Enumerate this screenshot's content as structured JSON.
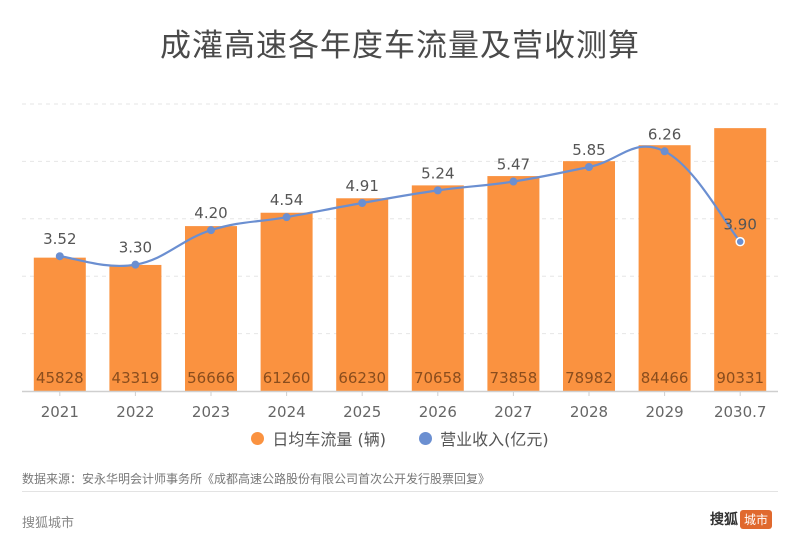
{
  "chart_data": {
    "type": "bar",
    "title": "成灌高速各年度车流量及营收测算",
    "categories": [
      "2021",
      "2022",
      "2023",
      "2024",
      "2025",
      "2026",
      "2027",
      "2028",
      "2029",
      "2030.7"
    ],
    "series": [
      {
        "name": "日均车流量 (辆)",
        "type": "bar",
        "color": "#fa9240",
        "values": [
          45828,
          43319,
          56666,
          61260,
          66230,
          70658,
          73858,
          78982,
          84466,
          90331
        ],
        "axis_range": [
          0,
          100000
        ]
      },
      {
        "name": "营业收入(亿元)",
        "type": "line",
        "color": "#6b8fd1",
        "values": [
          3.52,
          3.3,
          4.2,
          4.54,
          4.91,
          5.24,
          5.47,
          5.85,
          6.26,
          3.9
        ],
        "axis_range": [
          0,
          7.6
        ]
      }
    ],
    "xlabel": "",
    "ylabel": "",
    "grid": true,
    "legend_position": "bottom-center"
  },
  "source_text": "数据来源：安永华明会计师事务所《成都高速公路股份有限公司首次公开发行股票回复》",
  "footer": {
    "brand": "搜狐城市",
    "logo_text": "搜狐",
    "logo_badge": "城市"
  },
  "colors": {
    "bar": "#fa9240",
    "line": "#6b8fd1",
    "title": "#4a4a4a",
    "brand_accent": "#e0692e"
  }
}
